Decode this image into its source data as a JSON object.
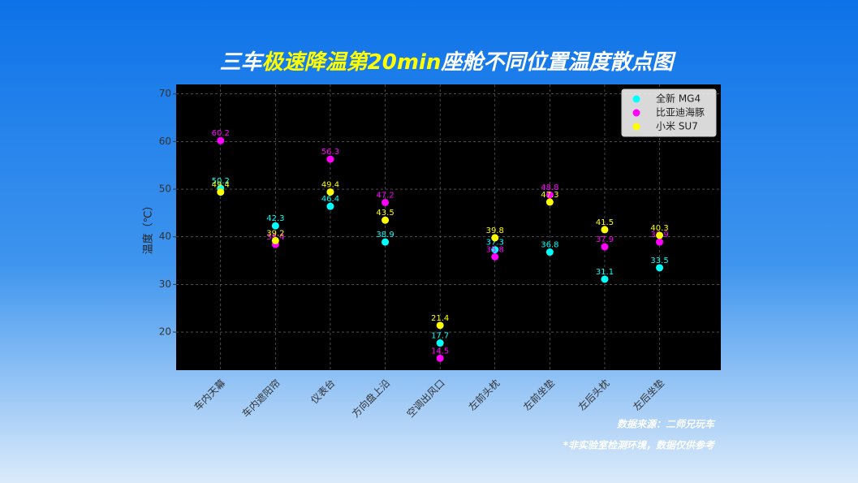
{
  "chart_data": {
    "type": "scatter",
    "title_parts": [
      "三车",
      "极速降温第20min",
      "座舱不同位置温度散点图"
    ],
    "y_label": "温度（℃）",
    "categories": [
      "车内天幕",
      "车内遮阳帘",
      "仪表台",
      "方向盘上沿",
      "空调出风口",
      "左前头枕",
      "左前坐垫",
      "左后头枕",
      "左后坐垫"
    ],
    "series": [
      {
        "name": "全新 MG4",
        "color": "#00ffff",
        "values": [
          50.2,
          42.3,
          46.4,
          38.9,
          17.7,
          37.3,
          36.8,
          31.1,
          33.5
        ]
      },
      {
        "name": "比亚迪海豚",
        "color": "#ff00ff",
        "values": [
          60.2,
          38.4,
          56.3,
          47.2,
          14.5,
          35.8,
          48.8,
          37.9,
          38.9
        ]
      },
      {
        "name": "小米 SU7",
        "color": "#ffff00",
        "values": [
          49.4,
          39.2,
          49.4,
          43.5,
          21.4,
          39.8,
          47.3,
          41.5,
          40.3
        ]
      }
    ],
    "ylim": [
      12,
      72
    ],
    "yticks": [
      20,
      30,
      40,
      50,
      60,
      70
    ],
    "grid": true,
    "legend": "upper right",
    "source": "数据来源：二师兄玩车",
    "note": "*非实验室检测环境，数据仅供参考"
  }
}
